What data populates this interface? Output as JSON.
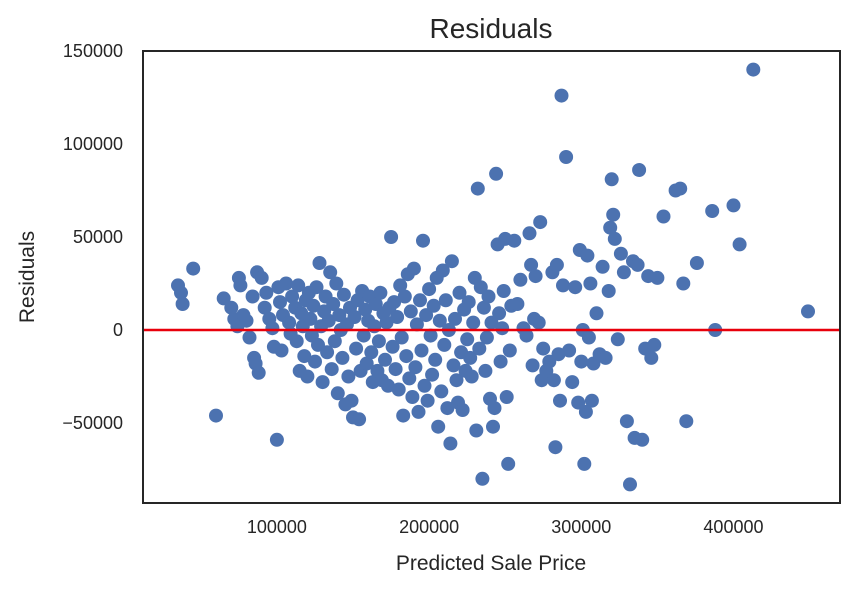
{
  "chart_data": {
    "type": "scatter",
    "title": "Residuals",
    "xlabel": "Predicted Sale Price",
    "ylabel": "Residuals",
    "xlim": [
      12000,
      470000
    ],
    "ylim": [
      -93000,
      150000
    ],
    "xticks": [
      100000,
      200000,
      300000,
      400000
    ],
    "yticks": [
      -50000,
      0,
      50000,
      100000,
      150000
    ],
    "xtick_labels": [
      "100000",
      "200000",
      "300000",
      "400000"
    ],
    "ytick_labels": [
      "−50000",
      "0",
      "50000",
      "100000",
      "150000"
    ],
    "grid": false,
    "reference_line": {
      "y": 0,
      "color": "#e8000b"
    },
    "point_color": "#4c72b0",
    "frame_color": "#262626",
    "series": [
      {
        "points": [
          [
            35000,
            24000
          ],
          [
            37000,
            20000
          ],
          [
            38000,
            14000
          ],
          [
            45000,
            33000
          ],
          [
            60000,
            -46000
          ],
          [
            65000,
            17000
          ],
          [
            70000,
            12000
          ],
          [
            72000,
            6000
          ],
          [
            74000,
            2000
          ],
          [
            75000,
            28000
          ],
          [
            76000,
            24000
          ],
          [
            78000,
            8000
          ],
          [
            80000,
            5000
          ],
          [
            82000,
            -4000
          ],
          [
            84000,
            18000
          ],
          [
            85000,
            -15000
          ],
          [
            86000,
            -18000
          ],
          [
            87000,
            31000
          ],
          [
            88000,
            -23000
          ],
          [
            90000,
            28000
          ],
          [
            92000,
            12000
          ],
          [
            93000,
            20000
          ],
          [
            95000,
            6000
          ],
          [
            97000,
            1000
          ],
          [
            98000,
            -9000
          ],
          [
            100000,
            -59000
          ],
          [
            101000,
            23000
          ],
          [
            102000,
            15000
          ],
          [
            103000,
            -11000
          ],
          [
            104000,
            8000
          ],
          [
            106000,
            25000
          ],
          [
            108000,
            4000
          ],
          [
            109000,
            -2000
          ],
          [
            110000,
            18000
          ],
          [
            112000,
            12000
          ],
          [
            113000,
            -6000
          ],
          [
            114000,
            24000
          ],
          [
            115000,
            -22000
          ],
          [
            116000,
            9000
          ],
          [
            117000,
            2000
          ],
          [
            118000,
            -14000
          ],
          [
            119000,
            16000
          ],
          [
            120000,
            -25000
          ],
          [
            121000,
            20000
          ],
          [
            122000,
            6000
          ],
          [
            123000,
            -3000
          ],
          [
            124000,
            13000
          ],
          [
            125000,
            -17000
          ],
          [
            126000,
            23000
          ],
          [
            127000,
            -8000
          ],
          [
            128000,
            36000
          ],
          [
            129000,
            2000
          ],
          [
            130000,
            -28000
          ],
          [
            131000,
            10000
          ],
          [
            132000,
            18000
          ],
          [
            133000,
            -12000
          ],
          [
            134000,
            5000
          ],
          [
            135000,
            31000
          ],
          [
            136000,
            -21000
          ],
          [
            137000,
            14000
          ],
          [
            138000,
            -6000
          ],
          [
            139000,
            25000
          ],
          [
            140000,
            -34000
          ],
          [
            141000,
            8000
          ],
          [
            142000,
            0
          ],
          [
            143000,
            -15000
          ],
          [
            144000,
            19000
          ],
          [
            145000,
            -40000
          ],
          [
            146000,
            3000
          ],
          [
            147000,
            -25000
          ],
          [
            148000,
            12000
          ],
          [
            149000,
            -38000
          ],
          [
            150000,
            -47000
          ],
          [
            151000,
            7000
          ],
          [
            152000,
            -10000
          ],
          [
            153000,
            16000
          ],
          [
            154000,
            -48000
          ],
          [
            155000,
            -22000
          ],
          [
            156000,
            21000
          ],
          [
            157000,
            -3000
          ],
          [
            158000,
            11000
          ],
          [
            159000,
            -18000
          ],
          [
            160000,
            5000
          ],
          [
            161000,
            18000
          ],
          [
            162000,
            -12000
          ],
          [
            163000,
            -28000
          ],
          [
            164000,
            2000
          ],
          [
            165000,
            14000
          ],
          [
            166000,
            -22000
          ],
          [
            167000,
            -6000
          ],
          [
            168000,
            20000
          ],
          [
            169000,
            -27000
          ],
          [
            170000,
            9000
          ],
          [
            171000,
            -16000
          ],
          [
            172000,
            4000
          ],
          [
            173000,
            -30000
          ],
          [
            174000,
            12000
          ],
          [
            175000,
            50000
          ],
          [
            176000,
            -9000
          ],
          [
            177000,
            15000
          ],
          [
            178000,
            -21000
          ],
          [
            179000,
            7000
          ],
          [
            180000,
            -32000
          ],
          [
            181000,
            24000
          ],
          [
            182000,
            -4000
          ],
          [
            183000,
            -46000
          ],
          [
            184000,
            18000
          ],
          [
            185000,
            -14000
          ],
          [
            186000,
            30000
          ],
          [
            187000,
            -26000
          ],
          [
            188000,
            10000
          ],
          [
            189000,
            -36000
          ],
          [
            190000,
            33000
          ],
          [
            191000,
            -20000
          ],
          [
            192000,
            3000
          ],
          [
            193000,
            -44000
          ],
          [
            194000,
            16000
          ],
          [
            195000,
            -11000
          ],
          [
            196000,
            48000
          ],
          [
            197000,
            -30000
          ],
          [
            198000,
            8000
          ],
          [
            199000,
            -38000
          ],
          [
            200000,
            22000
          ],
          [
            201000,
            -3000
          ],
          [
            202000,
            -24000
          ],
          [
            203000,
            13000
          ],
          [
            204000,
            -16000
          ],
          [
            205000,
            28000
          ],
          [
            206000,
            -52000
          ],
          [
            207000,
            5000
          ],
          [
            208000,
            -33000
          ],
          [
            209000,
            32000
          ],
          [
            210000,
            -8000
          ],
          [
            211000,
            16000
          ],
          [
            212000,
            -42000
          ],
          [
            213000,
            0
          ],
          [
            214000,
            -61000
          ],
          [
            215000,
            37000
          ],
          [
            216000,
            -19000
          ],
          [
            217000,
            6000
          ],
          [
            218000,
            -27000
          ],
          [
            219000,
            -39000
          ],
          [
            220000,
            20000
          ],
          [
            221000,
            -12000
          ],
          [
            222000,
            -43000
          ],
          [
            223000,
            11000
          ],
          [
            224000,
            -22000
          ],
          [
            225000,
            -5000
          ],
          [
            226000,
            15000
          ],
          [
            227000,
            -15000
          ],
          [
            228000,
            -25000
          ],
          [
            229000,
            4000
          ],
          [
            230000,
            28000
          ],
          [
            231000,
            -54000
          ],
          [
            232000,
            76000
          ],
          [
            233000,
            -10000
          ],
          [
            234000,
            23000
          ],
          [
            235000,
            -80000
          ],
          [
            236000,
            12000
          ],
          [
            237000,
            -22000
          ],
          [
            238000,
            -4000
          ],
          [
            239000,
            18000
          ],
          [
            240000,
            -37000
          ],
          [
            241000,
            4000
          ],
          [
            242000,
            -52000
          ],
          [
            243000,
            -42000
          ],
          [
            244000,
            84000
          ],
          [
            245000,
            46000
          ],
          [
            246000,
            9000
          ],
          [
            247000,
            -17000
          ],
          [
            248000,
            1000
          ],
          [
            249000,
            21000
          ],
          [
            250000,
            49000
          ],
          [
            251000,
            -36000
          ],
          [
            252000,
            -72000
          ],
          [
            253000,
            -11000
          ],
          [
            254000,
            13000
          ],
          [
            256000,
            48000
          ],
          [
            258000,
            14000
          ],
          [
            260000,
            27000
          ],
          [
            262000,
            1000
          ],
          [
            264000,
            -3000
          ],
          [
            266000,
            52000
          ],
          [
            267000,
            35000
          ],
          [
            268000,
            -19000
          ],
          [
            269000,
            6000
          ],
          [
            270000,
            29000
          ],
          [
            272000,
            4000
          ],
          [
            273000,
            58000
          ],
          [
            274000,
            -27000
          ],
          [
            275000,
            -10000
          ],
          [
            277000,
            -22000
          ],
          [
            279000,
            -17000
          ],
          [
            281000,
            31000
          ],
          [
            282000,
            -27000
          ],
          [
            283000,
            -63000
          ],
          [
            284000,
            35000
          ],
          [
            285000,
            -13000
          ],
          [
            286000,
            -38000
          ],
          [
            287000,
            126000
          ],
          [
            288000,
            24000
          ],
          [
            290000,
            93000
          ],
          [
            292000,
            -11000
          ],
          [
            294000,
            -28000
          ],
          [
            296000,
            23000
          ],
          [
            298000,
            -39000
          ],
          [
            299000,
            43000
          ],
          [
            300000,
            -17000
          ],
          [
            301000,
            0
          ],
          [
            302000,
            -72000
          ],
          [
            303000,
            -44000
          ],
          [
            304000,
            40000
          ],
          [
            305000,
            -4000
          ],
          [
            306000,
            25000
          ],
          [
            307000,
            -38000
          ],
          [
            308000,
            -18000
          ],
          [
            310000,
            9000
          ],
          [
            312000,
            -13000
          ],
          [
            314000,
            34000
          ],
          [
            316000,
            -15000
          ],
          [
            318000,
            21000
          ],
          [
            319000,
            55000
          ],
          [
            320000,
            81000
          ],
          [
            321000,
            62000
          ],
          [
            322000,
            49000
          ],
          [
            324000,
            -5000
          ],
          [
            326000,
            41000
          ],
          [
            328000,
            31000
          ],
          [
            330000,
            -49000
          ],
          [
            332000,
            -83000
          ],
          [
            334000,
            37000
          ],
          [
            335000,
            -58000
          ],
          [
            337000,
            35000
          ],
          [
            338000,
            86000
          ],
          [
            340000,
            -59000
          ],
          [
            342000,
            -10000
          ],
          [
            344000,
            29000
          ],
          [
            346000,
            -15000
          ],
          [
            348000,
            -8000
          ],
          [
            350000,
            28000
          ],
          [
            354000,
            61000
          ],
          [
            362000,
            75000
          ],
          [
            365000,
            76000
          ],
          [
            367000,
            25000
          ],
          [
            369000,
            -49000
          ],
          [
            376000,
            36000
          ],
          [
            386000,
            64000
          ],
          [
            388000,
            0
          ],
          [
            400000,
            67000
          ],
          [
            404000,
            46000
          ],
          [
            413000,
            140000
          ],
          [
            449000,
            10000
          ]
        ]
      }
    ]
  }
}
